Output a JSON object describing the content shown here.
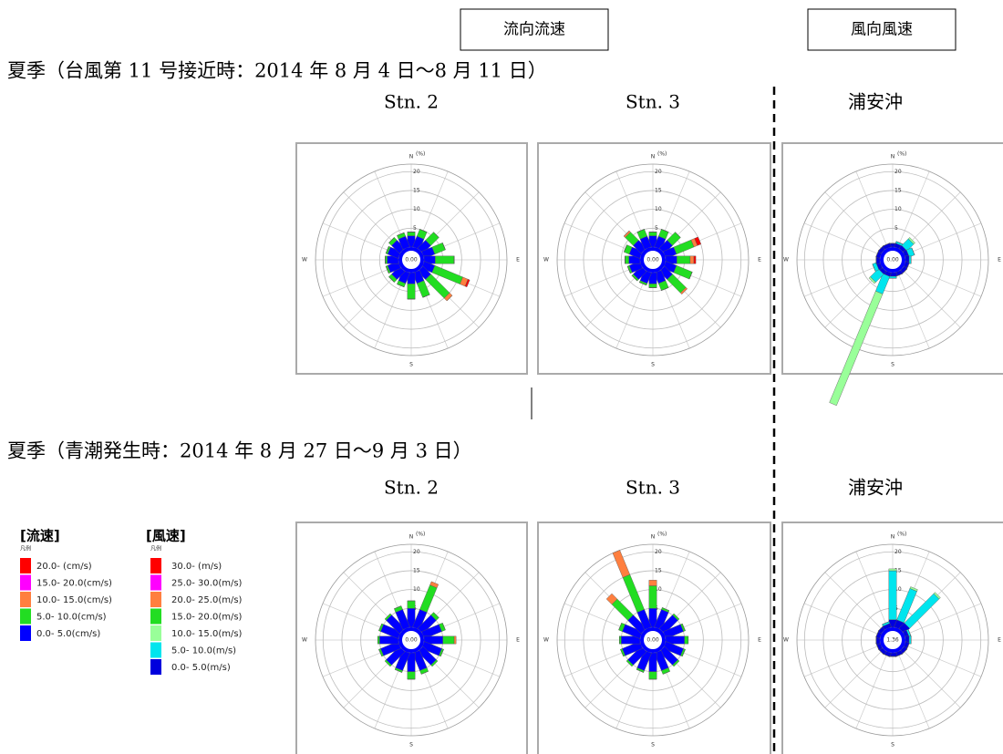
{
  "header_boxes": [
    "流向流速",
    "風向風速"
  ],
  "sections": [
    "夏季（台風第 11 号接近時：2014 年 8 月 4 日～8 月 11 日）",
    "夏季（青潮発生時：2014 年 8 月 27 日～9 月 3 日）"
  ],
  "legends": [
    {
      "title": "[流速]",
      "caption": "凡例",
      "entries": [
        {
          "label": "20.0-      (cm/s)",
          "color": "#ff0000"
        },
        {
          "label": "15.0- 20.0(cm/s)",
          "color": "#ff00ff"
        },
        {
          "label": "10.0- 15.0(cm/s)",
          "color": "#ff7f3f"
        },
        {
          "label": "5.0- 10.0(cm/s)",
          "color": "#22dd22"
        },
        {
          "label": "0.0-  5.0(cm/s)",
          "color": "#0000ff"
        }
      ]
    },
    {
      "title": "[風速]",
      "caption": "凡例",
      "entries": [
        {
          "label": "30.0-      (m/s)",
          "color": "#ff0000"
        },
        {
          "label": "25.0- 30.0(m/s)",
          "color": "#ff00ff"
        },
        {
          "label": "20.0- 25.0(m/s)",
          "color": "#ff7f3f"
        },
        {
          "label": "15.0- 20.0(m/s)",
          "color": "#22dd22"
        },
        {
          "label": "10.0- 15.0(m/s)",
          "color": "#99ff99"
        },
        {
          "label": "5.0- 10.0(m/s)",
          "color": "#00e5ee"
        },
        {
          "label": "0.0-  5.0(m/s)",
          "color": "#0000dd"
        }
      ]
    }
  ],
  "chart_data": [
    {
      "type": "rose",
      "title": "Stn. 2",
      "center_label": "0.00",
      "unit": "(%)",
      "compass": {
        "n": "N",
        "e": "E",
        "s": "S",
        "w": "W"
      },
      "rlim": [
        0,
        22
      ],
      "rticks": [
        5,
        10,
        15,
        20
      ],
      "series": [
        {
          "color": "#0000ff",
          "values": [
            3,
            3,
            3,
            3,
            3,
            3,
            3,
            3,
            3,
            3,
            3,
            3,
            3,
            3,
            3,
            3
          ]
        },
        {
          "color": "#22dd22",
          "values": [
            1,
            2,
            3,
            3,
            5,
            8,
            7,
            4,
            4,
            1,
            1,
            0.5,
            0.5,
            0.5,
            1,
            1
          ]
        },
        {
          "color": "#ff7f3f",
          "values": [
            0,
            0,
            0,
            0,
            0,
            1.5,
            1,
            0,
            0,
            0,
            0,
            0,
            0,
            0,
            0,
            0
          ]
        },
        {
          "color": "#ff0000",
          "values": [
            0,
            0,
            0,
            0,
            0,
            0.5,
            0,
            0,
            0,
            0,
            0,
            0,
            0,
            0,
            0,
            0
          ]
        }
      ]
    },
    {
      "type": "rose",
      "title": "Stn. 3",
      "center_label": "0.00",
      "unit": "(%)",
      "compass": {
        "n": "N",
        "e": "E",
        "s": "S",
        "w": "W"
      },
      "rlim": [
        0,
        22
      ],
      "rticks": [
        5,
        10,
        15,
        20
      ],
      "series": [
        {
          "color": "#0000ff",
          "values": [
            3,
            3,
            3,
            3,
            3,
            3,
            3,
            3,
            3,
            3,
            3,
            3,
            3,
            3,
            3,
            3
          ]
        },
        {
          "color": "#22dd22",
          "values": [
            1,
            2,
            3,
            5,
            3.5,
            4.5,
            5,
            2,
            1,
            0.5,
            0.5,
            0.5,
            1,
            1.5,
            3,
            2
          ]
        },
        {
          "color": "#ff7f3f",
          "values": [
            0,
            0,
            0,
            1,
            1,
            0,
            0.5,
            0,
            0,
            0,
            0,
            0,
            0,
            0,
            0.5,
            0
          ]
        },
        {
          "color": "#ff0000",
          "values": [
            0,
            0,
            0,
            1,
            0.5,
            0,
            0,
            0,
            0,
            0,
            0,
            0,
            0,
            0,
            0,
            0
          ]
        }
      ]
    },
    {
      "type": "rose",
      "title": "浦安沖",
      "center_label": "0.00",
      "unit": "(%)",
      "compass": {
        "n": "N",
        "e": "E",
        "s": "S",
        "w": "W"
      },
      "rlim": [
        0,
        22
      ],
      "rticks": [
        5,
        10,
        15,
        20
      ],
      "series": [
        {
          "color": "#0000dd",
          "values": [
            1,
            1,
            1,
            1,
            1,
            1,
            1,
            1,
            1,
            1,
            1,
            1,
            1,
            1,
            1,
            1
          ]
        },
        {
          "color": "#00e5ee",
          "values": [
            0,
            0.5,
            2.5,
            1.5,
            0.5,
            0,
            0,
            0,
            0.5,
            5,
            3,
            1,
            0,
            0,
            0,
            0
          ]
        },
        {
          "color": "#99ff99",
          "values": [
            0,
            0,
            0.5,
            0,
            0,
            0,
            0,
            0,
            0,
            32,
            0.5,
            0,
            0,
            0,
            0,
            0
          ]
        }
      ]
    },
    {
      "type": "rose",
      "title": "Stn. 2",
      "center_label": "0.00",
      "unit": "(%)",
      "compass": {
        "n": "N",
        "e": "E",
        "s": "S",
        "w": "W"
      },
      "rlim": [
        0,
        22
      ],
      "rticks": [
        5,
        10,
        15,
        20
      ],
      "series": [
        {
          "color": "#0000ff",
          "values": [
            5,
            5,
            5,
            5,
            5,
            5,
            5,
            5,
            5,
            5,
            5,
            5,
            5,
            5,
            5,
            5
          ]
        },
        {
          "color": "#22dd22",
          "values": [
            2,
            7,
            1,
            1,
            3,
            0.5,
            0.5,
            1,
            2,
            0.5,
            0.5,
            0.5,
            0.5,
            0.5,
            0.5,
            1
          ]
        },
        {
          "color": "#ff7f3f",
          "values": [
            0,
            1,
            0,
            0,
            0.5,
            0,
            0,
            0,
            0,
            0,
            0,
            0,
            0,
            0,
            0,
            0
          ]
        }
      ]
    },
    {
      "type": "rose",
      "title": "Stn. 3",
      "center_label": "0.00",
      "unit": "(%)",
      "compass": {
        "n": "N",
        "e": "E",
        "s": "S",
        "w": "W"
      },
      "rlim": [
        0,
        22
      ],
      "rticks": [
        5,
        10,
        15,
        20
      ],
      "series": [
        {
          "color": "#0000ff",
          "values": [
            5,
            5,
            5,
            5,
            5,
            5,
            5,
            5,
            5,
            5,
            5,
            5,
            5,
            5,
            5,
            5
          ]
        },
        {
          "color": "#22dd22",
          "values": [
            6,
            0.5,
            0.5,
            0.5,
            1,
            0.5,
            0.5,
            1,
            2,
            0.5,
            0.5,
            0.5,
            0.5,
            1,
            6,
            10
          ]
        },
        {
          "color": "#ff7f3f",
          "values": [
            1.5,
            0,
            0,
            0,
            0,
            0,
            0,
            0,
            0,
            0,
            0,
            0,
            0,
            0,
            2,
            7
          ]
        }
      ]
    },
    {
      "type": "rose",
      "title": "浦安沖",
      "center_label": "1.36",
      "unit": "(%)",
      "compass": {
        "n": "N",
        "e": "E",
        "s": "S",
        "w": "W"
      },
      "rlim": [
        0,
        22
      ],
      "rticks": [
        5,
        10,
        15,
        20
      ],
      "series": [
        {
          "color": "#0000dd",
          "values": [
            2,
            2,
            2,
            1,
            1,
            1,
            1,
            1,
            1,
            1,
            1,
            1,
            1,
            1,
            1,
            1
          ]
        },
        {
          "color": "#00e5ee",
          "values": [
            13,
            9,
            11,
            0.5,
            0.5,
            0,
            0,
            0,
            0,
            0,
            0,
            0,
            0,
            0,
            0,
            0.5
          ]
        },
        {
          "color": "#99ff99",
          "values": [
            0.5,
            0.5,
            0.5,
            0,
            0,
            0,
            0,
            0,
            0,
            0,
            0,
            0,
            0,
            0,
            0,
            0
          ]
        }
      ]
    }
  ]
}
